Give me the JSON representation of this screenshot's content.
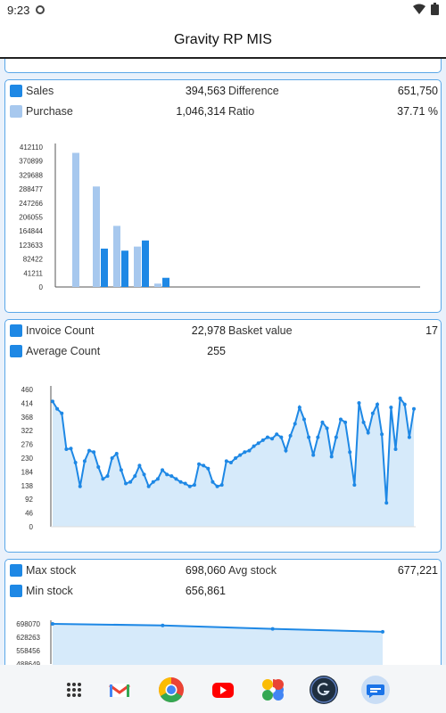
{
  "status": {
    "time": "9:23"
  },
  "app": {
    "title": "Gravity RP MIS"
  },
  "card1": {
    "left_stats": [
      {
        "label": "Sales",
        "value": "394,563",
        "color": "#1e88e5"
      },
      {
        "label": "Purchase",
        "value": "1,046,314",
        "color": "#a7c8ee"
      }
    ],
    "right_stats": [
      {
        "label": "Difference",
        "value": "651,750"
      },
      {
        "label": "Ratio",
        "value": "37.71 %"
      }
    ]
  },
  "card2": {
    "left_stats": [
      {
        "label": "Invoice Count",
        "value": "22,978",
        "color": "#1e88e5"
      },
      {
        "label": "Average Count",
        "value": "255",
        "color": "#1e88e5"
      }
    ],
    "right_stats": [
      {
        "label": "Basket value",
        "value": "17"
      }
    ]
  },
  "card3": {
    "left_stats": [
      {
        "label": "Max stock",
        "value": "698,060",
        "color": "#1e88e5"
      },
      {
        "label": "Min stock",
        "value": "656,861",
        "color": "#1e88e5"
      }
    ],
    "right_stats": [
      {
        "label": "Avg stock",
        "value": "677,221"
      }
    ]
  },
  "chart_data": [
    {
      "type": "bar",
      "ylim": [
        0,
        412110
      ],
      "y_ticks": [
        "412110",
        "370899",
        "329688",
        "288477",
        "247266",
        "206055",
        "164844",
        "123633",
        "82422",
        "41211",
        "0"
      ],
      "series": [
        {
          "name": "Sales",
          "values": [
            0,
            113000,
            107000,
            137000,
            27000
          ],
          "color": "#1e88e5"
        },
        {
          "name": "Purchase",
          "values": [
            395000,
            296000,
            180000,
            119000,
            10000
          ],
          "color": "#a7c8ee"
        }
      ]
    },
    {
      "type": "area",
      "ylim": [
        0,
        460
      ],
      "y_ticks": [
        "460",
        "414",
        "368",
        "322",
        "276",
        "230",
        "184",
        "138",
        "92",
        "46",
        "0"
      ],
      "values": [
        420,
        395,
        380,
        260,
        262,
        215,
        135,
        220,
        255,
        250,
        200,
        160,
        170,
        230,
        245,
        190,
        145,
        150,
        170,
        205,
        175,
        135,
        150,
        160,
        190,
        175,
        170,
        160,
        150,
        145,
        135,
        140,
        210,
        205,
        195,
        150,
        135,
        140,
        220,
        215,
        230,
        240,
        250,
        255,
        270,
        280,
        290,
        300,
        295,
        310,
        300,
        255,
        305,
        345,
        400,
        360,
        300,
        240,
        300,
        350,
        330,
        235,
        300,
        360,
        350,
        250,
        140,
        415,
        350,
        315,
        380,
        410,
        310,
        80,
        400,
        260,
        430,
        410,
        300,
        395
      ]
    },
    {
      "type": "area",
      "y_ticks": [
        "698070",
        "628263",
        "558456",
        "488649"
      ],
      "values": [
        698060,
        690000,
        672000,
        656861
      ]
    }
  ]
}
